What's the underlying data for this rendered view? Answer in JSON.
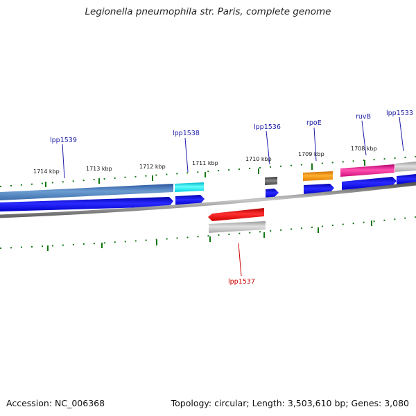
{
  "title": "Legionella pneumophila str. Paris, complete genome",
  "footer": {
    "accession": "Accession: NC_006368",
    "summary": "Topology: circular; Length: 3,503,610 bp; Genes: 3,080"
  },
  "ticks": [
    {
      "label": "1714 kbp",
      "kbp": 1714
    },
    {
      "label": "1713 kbp",
      "kbp": 1713
    },
    {
      "label": "1712 kbp",
      "kbp": 1712
    },
    {
      "label": "1711 kbp",
      "kbp": 1711
    },
    {
      "label": "1710 kbp",
      "kbp": 1710
    },
    {
      "label": "1709 kbp",
      "kbp": 1709
    },
    {
      "label": "1708 kbp",
      "kbp": 1708
    }
  ],
  "genes": [
    {
      "label": "lpp1539",
      "strand": "forward",
      "color": "#4a7db8",
      "label_color": "#1a1aa6"
    },
    {
      "label": "lpp1538",
      "strand": "forward",
      "color": "#00e5f0",
      "label_color": "#1a1aa6"
    },
    {
      "label": "lpp1536",
      "strand": "forward",
      "color": "#555555",
      "label_color": "#1a1aa6"
    },
    {
      "label": "rpoE",
      "strand": "forward",
      "color": "#ff9900",
      "label_color": "#1a1aa6"
    },
    {
      "label": "ruvB",
      "strand": "forward",
      "color": "#ee1188",
      "label_color": "#1a1aa6"
    },
    {
      "label": "lpp1533",
      "strand": "forward",
      "color": "#bbbbbb",
      "label_color": "#1a1aa6"
    },
    {
      "label": "lpp1537",
      "strand": "reverse",
      "color": "#ee0000",
      "label_color": "#cc0000"
    }
  ],
  "colors": {
    "cds": "#0000ee",
    "backbone": "#888888",
    "ruler": "#117711",
    "rrna_gray": "#bbbbbb"
  }
}
